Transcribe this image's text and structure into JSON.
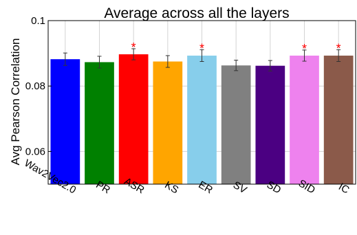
{
  "chart_data": {
    "type": "bar",
    "title": "Average across all the layers",
    "xlabel": "",
    "ylabel": "Avg Pearson Correlation",
    "ylim": [
      0.05,
      0.1
    ],
    "yticks": [
      0.06,
      0.08,
      0.1
    ],
    "ytick_labels": [
      "0.06",
      "0.08",
      "0.1"
    ],
    "grid": true,
    "categories": [
      "Wav2Vec2.0",
      "PR",
      "ASR",
      "KS",
      "ER",
      "SV",
      "SD",
      "SID",
      "IC"
    ],
    "values": [
      0.0882,
      0.0873,
      0.0897,
      0.0875,
      0.0893,
      0.0863,
      0.0862,
      0.0893,
      0.0893
    ],
    "errors": [
      0.0019,
      0.0018,
      0.0017,
      0.0018,
      0.0018,
      0.0016,
      0.0016,
      0.0017,
      0.0018
    ],
    "significant": [
      false,
      false,
      true,
      false,
      true,
      false,
      false,
      true,
      true
    ],
    "significance_marker": "*",
    "colors": [
      "#0000ff",
      "#008000",
      "#ff0000",
      "#ffa500",
      "#87ceeb",
      "#808080",
      "#4b0082",
      "#ee82ee",
      "#8b5a4a"
    ],
    "star_color": "#ff0000"
  }
}
